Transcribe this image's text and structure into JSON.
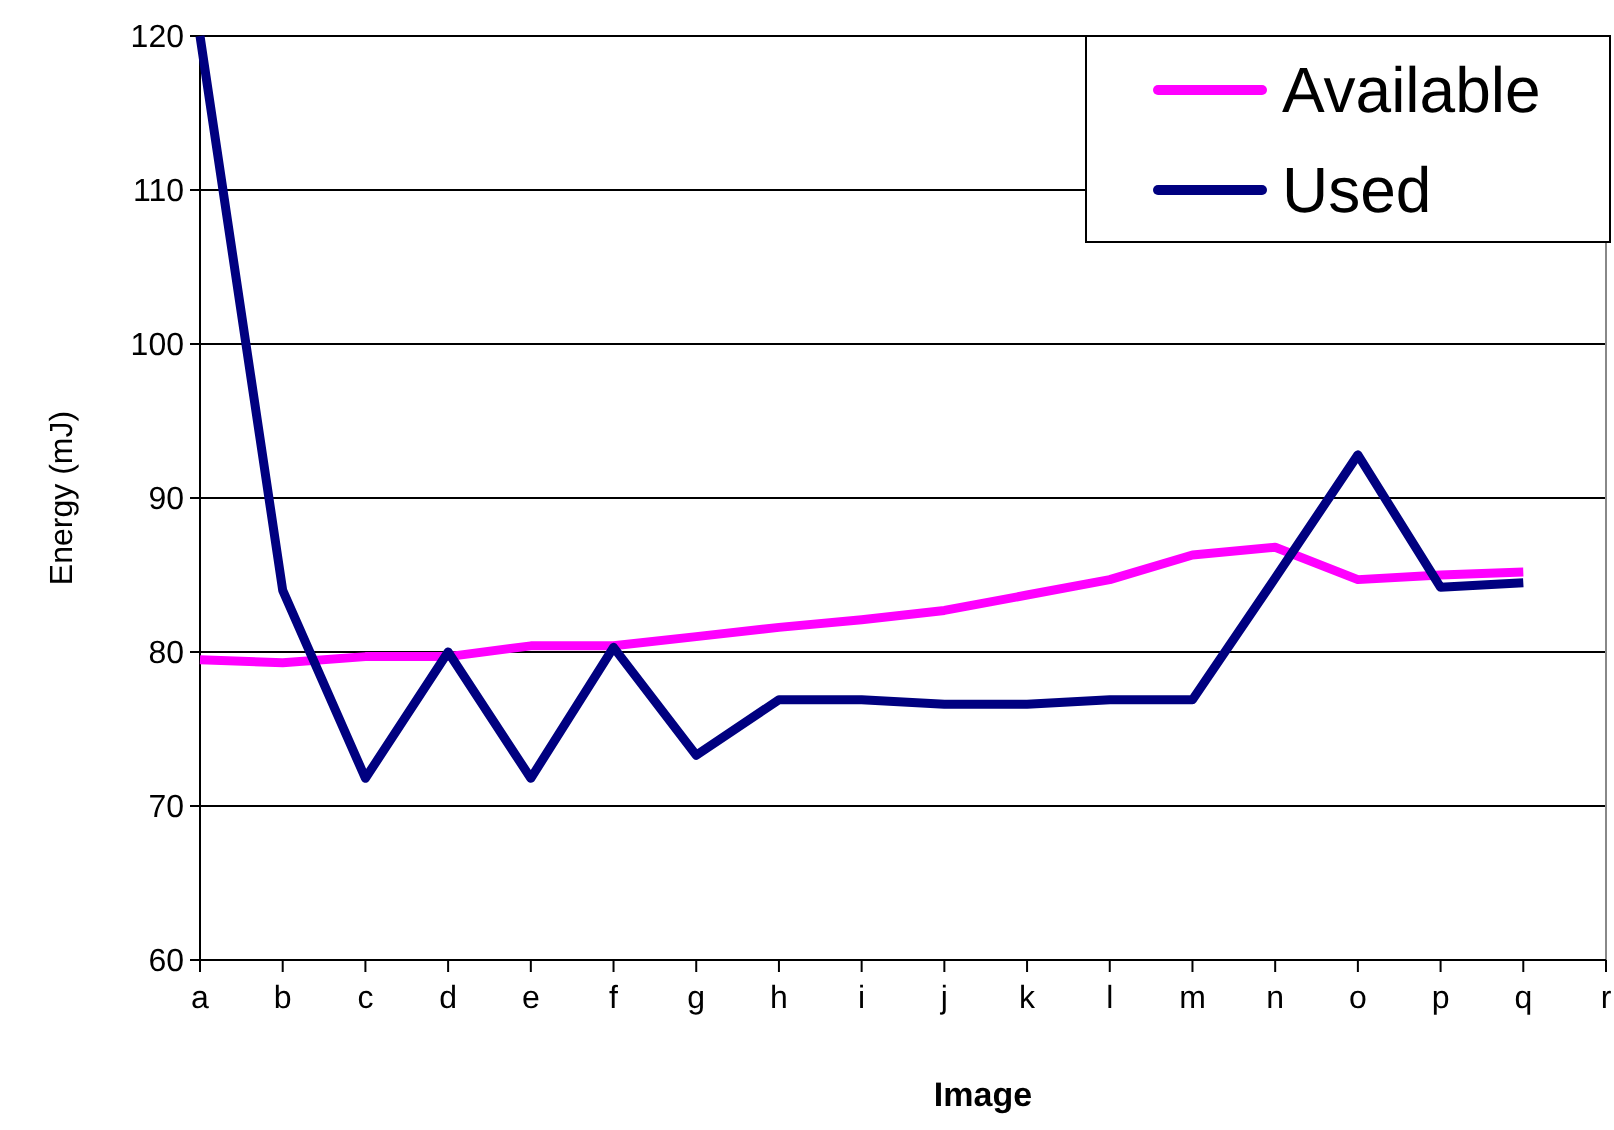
{
  "chart_data": {
    "type": "line",
    "xlabel": "Image",
    "ylabel": "Energy (mJ)",
    "categories": [
      "a",
      "b",
      "c",
      "d",
      "e",
      "f",
      "g",
      "h",
      "i",
      "j",
      "k",
      "l",
      "m",
      "n",
      "o",
      "p",
      "q",
      "r"
    ],
    "series": [
      {
        "name": "Available",
        "color": "#ff00ff",
        "values": [
          79.5,
          79.3,
          79.7,
          79.7,
          80.4,
          80.4,
          81,
          81.6,
          82.1,
          82.7,
          83.7,
          84.7,
          86.3,
          86.8,
          84.7,
          85,
          85.2,
          null
        ]
      },
      {
        "name": "Used",
        "color": "#000080",
        "values": [
          120,
          84,
          71.8,
          80,
          71.8,
          80.3,
          73.3,
          76.9,
          76.9,
          76.6,
          76.6,
          76.9,
          76.9,
          84.8,
          92.8,
          84.2,
          84.5,
          null
        ]
      }
    ],
    "ylim": [
      60,
      120
    ],
    "yticks": [
      60,
      70,
      80,
      90,
      100,
      110,
      120
    ],
    "grid": "y",
    "legend": "top right",
    "marker": "none",
    "line_style": "solid"
  }
}
